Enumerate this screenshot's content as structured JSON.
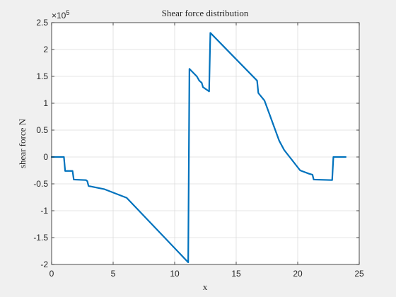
{
  "chart_data": {
    "type": "line",
    "title": "Shear force distribution",
    "xlabel": "x",
    "ylabel": "shear force N",
    "xlim": [
      0,
      25
    ],
    "ylim": [
      -2.0,
      2.5
    ],
    "y_exponent_base": "×10",
    "y_exponent_power": "5",
    "x_ticks": [
      0,
      5,
      10,
      15,
      20,
      25
    ],
    "x_tick_labels": [
      "0",
      "5",
      "10",
      "15",
      "20",
      "25"
    ],
    "y_ticks": [
      -2.0,
      -1.5,
      -1.0,
      -0.5,
      0,
      0.5,
      1.0,
      1.5,
      2.0,
      2.5
    ],
    "y_tick_labels": [
      "-2",
      "-1.5",
      "-1",
      "-0.5",
      "0",
      "0.5",
      "1",
      "1.5",
      "2",
      "2.5"
    ],
    "grid": true,
    "line_color": "#0072BD",
    "series": [
      {
        "x": [
          0,
          1.0,
          1.1,
          1.7,
          1.8,
          2.8,
          2.9,
          3.0,
          4.3,
          6.1,
          11.1,
          11.2,
          11.8,
          12.0,
          12.2,
          12.3,
          12.8,
          12.9,
          16.7,
          16.8,
          17.3,
          18.5,
          18.9,
          20.2,
          20.9,
          21.2,
          21.3,
          22.8,
          22.9,
          23.9
        ],
        "y": [
          0.0,
          0.0,
          -0.26,
          -0.26,
          -0.42,
          -0.43,
          -0.45,
          -0.54,
          -0.6,
          -0.76,
          -1.96,
          1.64,
          1.5,
          1.42,
          1.38,
          1.3,
          1.22,
          2.31,
          1.42,
          1.19,
          1.05,
          0.3,
          0.13,
          -0.25,
          -0.31,
          -0.33,
          -0.42,
          -0.43,
          0.0,
          0.0
        ]
      }
    ]
  }
}
